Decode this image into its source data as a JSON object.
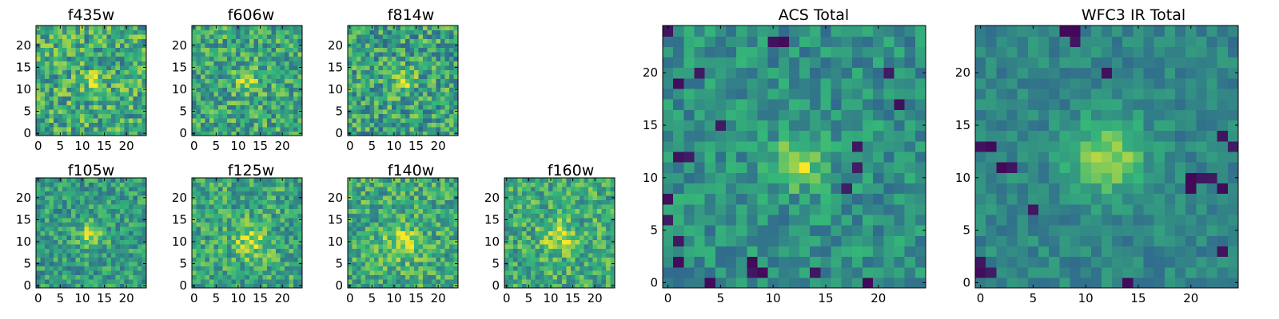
{
  "figure": {
    "colormap": [
      "#440154",
      "#31688e",
      "#35b779",
      "#fde725"
    ],
    "frame_color": "#000000"
  },
  "chart_data": [
    {
      "type": "heatmap",
      "title": "f435w",
      "grid": false,
      "shape": [
        25,
        25
      ],
      "center": [
        13,
        12
      ],
      "blob_sigma": 1.5,
      "blob_strength": 0.28,
      "base": 0.62,
      "noise": 0.26,
      "seed": 11,
      "dark_cells": [],
      "ticks_x": [
        0,
        5,
        10,
        15,
        20
      ],
      "ticks_y": [
        0,
        5,
        10,
        15,
        20
      ]
    },
    {
      "type": "heatmap",
      "title": "f606w",
      "grid": false,
      "shape": [
        25,
        25
      ],
      "center": [
        12,
        12
      ],
      "blob_sigma": 1.8,
      "blob_strength": 0.3,
      "base": 0.6,
      "noise": 0.24,
      "seed": 23,
      "dark_cells": [],
      "ticks_x": [
        0,
        5,
        10,
        15,
        20
      ],
      "ticks_y": [
        0,
        5,
        10,
        15,
        20
      ]
    },
    {
      "type": "heatmap",
      "title": "f814w",
      "grid": false,
      "shape": [
        25,
        25
      ],
      "center": [
        12,
        12
      ],
      "blob_sigma": 1.8,
      "blob_strength": 0.3,
      "base": 0.58,
      "noise": 0.26,
      "seed": 37,
      "dark_cells": [],
      "ticks_x": [
        0,
        5,
        10,
        15,
        20
      ],
      "ticks_y": [
        0,
        5,
        10,
        15,
        20
      ]
    },
    {
      "type": "heatmap",
      "title": "f105w",
      "grid": false,
      "shape": [
        25,
        25
      ],
      "center": [
        12,
        12
      ],
      "blob_sigma": 2.2,
      "blob_strength": 0.3,
      "base": 0.55,
      "noise": 0.2,
      "seed": 41,
      "dark_cells": [],
      "ticks_x": [
        0,
        5,
        10,
        15,
        20
      ],
      "ticks_y": [
        0,
        5,
        10,
        15,
        20
      ]
    },
    {
      "type": "heatmap",
      "title": "f125w",
      "grid": false,
      "shape": [
        25,
        25
      ],
      "center": [
        13,
        10
      ],
      "blob_sigma": 2.6,
      "blob_strength": 0.28,
      "base": 0.6,
      "noise": 0.22,
      "seed": 53,
      "dark_cells": [],
      "ticks_x": [
        0,
        5,
        10,
        15,
        20
      ],
      "ticks_y": [
        0,
        5,
        10,
        15,
        20
      ]
    },
    {
      "type": "heatmap",
      "title": "f140w",
      "grid": false,
      "shape": [
        25,
        25
      ],
      "center": [
        12,
        10
      ],
      "blob_sigma": 2.8,
      "blob_strength": 0.26,
      "base": 0.62,
      "noise": 0.22,
      "seed": 67,
      "dark_cells": [],
      "ticks_x": [
        0,
        5,
        10,
        15,
        20
      ],
      "ticks_y": [
        0,
        5,
        10,
        15,
        20
      ]
    },
    {
      "type": "heatmap",
      "title": "f160w",
      "grid": false,
      "shape": [
        25,
        25
      ],
      "center": [
        12,
        11
      ],
      "blob_sigma": 2.6,
      "blob_strength": 0.28,
      "base": 0.62,
      "noise": 0.22,
      "seed": 79,
      "dark_cells": [],
      "ticks_x": [
        0,
        5,
        10,
        15,
        20
      ],
      "ticks_y": [
        0,
        5,
        10,
        15,
        20
      ]
    },
    {
      "type": "heatmap",
      "title": "ACS Total",
      "grid": false,
      "shape": [
        25,
        25
      ],
      "center": [
        12.5,
        11.5
      ],
      "blob_sigma": 1.6,
      "blob_strength": 0.42,
      "base": 0.5,
      "noise": 0.16,
      "seed": 97,
      "dark_cells": [
        [
          1,
          19
        ],
        [
          4,
          0
        ],
        [
          1,
          12
        ],
        [
          2,
          12
        ],
        [
          0,
          8
        ],
        [
          0,
          6
        ],
        [
          1,
          4
        ],
        [
          1,
          2
        ],
        [
          8,
          2
        ],
        [
          8,
          1
        ],
        [
          9,
          1
        ],
        [
          18,
          13
        ],
        [
          18,
          11
        ],
        [
          14,
          1
        ],
        [
          19,
          0
        ],
        [
          22,
          17
        ],
        [
          21,
          20
        ],
        [
          11,
          23
        ],
        [
          10,
          23
        ],
        [
          5,
          15
        ],
        [
          0,
          24
        ],
        [
          17,
          9
        ],
        [
          3,
          20
        ]
      ],
      "ticks_x": [
        0,
        5,
        10,
        15,
        20
      ],
      "ticks_y": [
        0,
        5,
        10,
        15,
        20
      ]
    },
    {
      "type": "heatmap",
      "title": "WFC3 IR Total",
      "grid": false,
      "shape": [
        25,
        25
      ],
      "center": [
        12,
        12
      ],
      "blob_sigma": 2.4,
      "blob_strength": 0.4,
      "base": 0.46,
      "noise": 0.11,
      "seed": 113,
      "dark_cells": [
        [
          8,
          24
        ],
        [
          9,
          24
        ],
        [
          9,
          23
        ],
        [
          0,
          13
        ],
        [
          1,
          13
        ],
        [
          2,
          11
        ],
        [
          3,
          11
        ],
        [
          20,
          10
        ],
        [
          21,
          10
        ],
        [
          22,
          10
        ],
        [
          20,
          9
        ],
        [
          23,
          9
        ],
        [
          23,
          14
        ],
        [
          24,
          13
        ],
        [
          0,
          2
        ],
        [
          0,
          1
        ],
        [
          1,
          1
        ],
        [
          14,
          0
        ],
        [
          23,
          3
        ],
        [
          12,
          20
        ],
        [
          5,
          7
        ]
      ],
      "ticks_x": [
        0,
        5,
        10,
        15,
        20
      ],
      "ticks_y": [
        0,
        5,
        10,
        15,
        20
      ]
    }
  ]
}
